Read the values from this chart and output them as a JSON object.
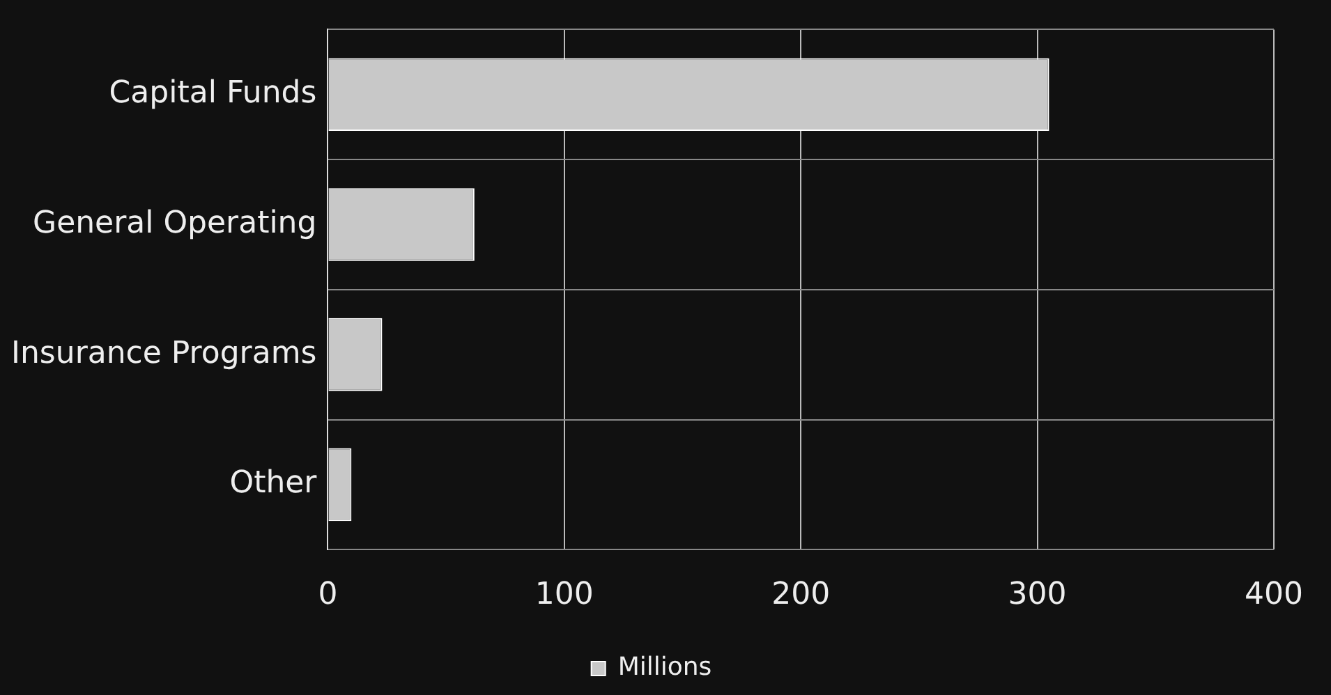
{
  "chart_data": {
    "type": "bar",
    "orientation": "horizontal",
    "categories": [
      "Capital Funds",
      "General Operating",
      "Insurance Programs",
      "Other"
    ],
    "series": [
      {
        "name": "Millions",
        "color": "#c8c8c8",
        "values": [
          305,
          62,
          23,
          10
        ]
      }
    ],
    "xlim": [
      0,
      400
    ],
    "xticks": [
      0,
      100,
      200,
      300,
      400
    ],
    "grid": true,
    "legend": "bottom"
  }
}
